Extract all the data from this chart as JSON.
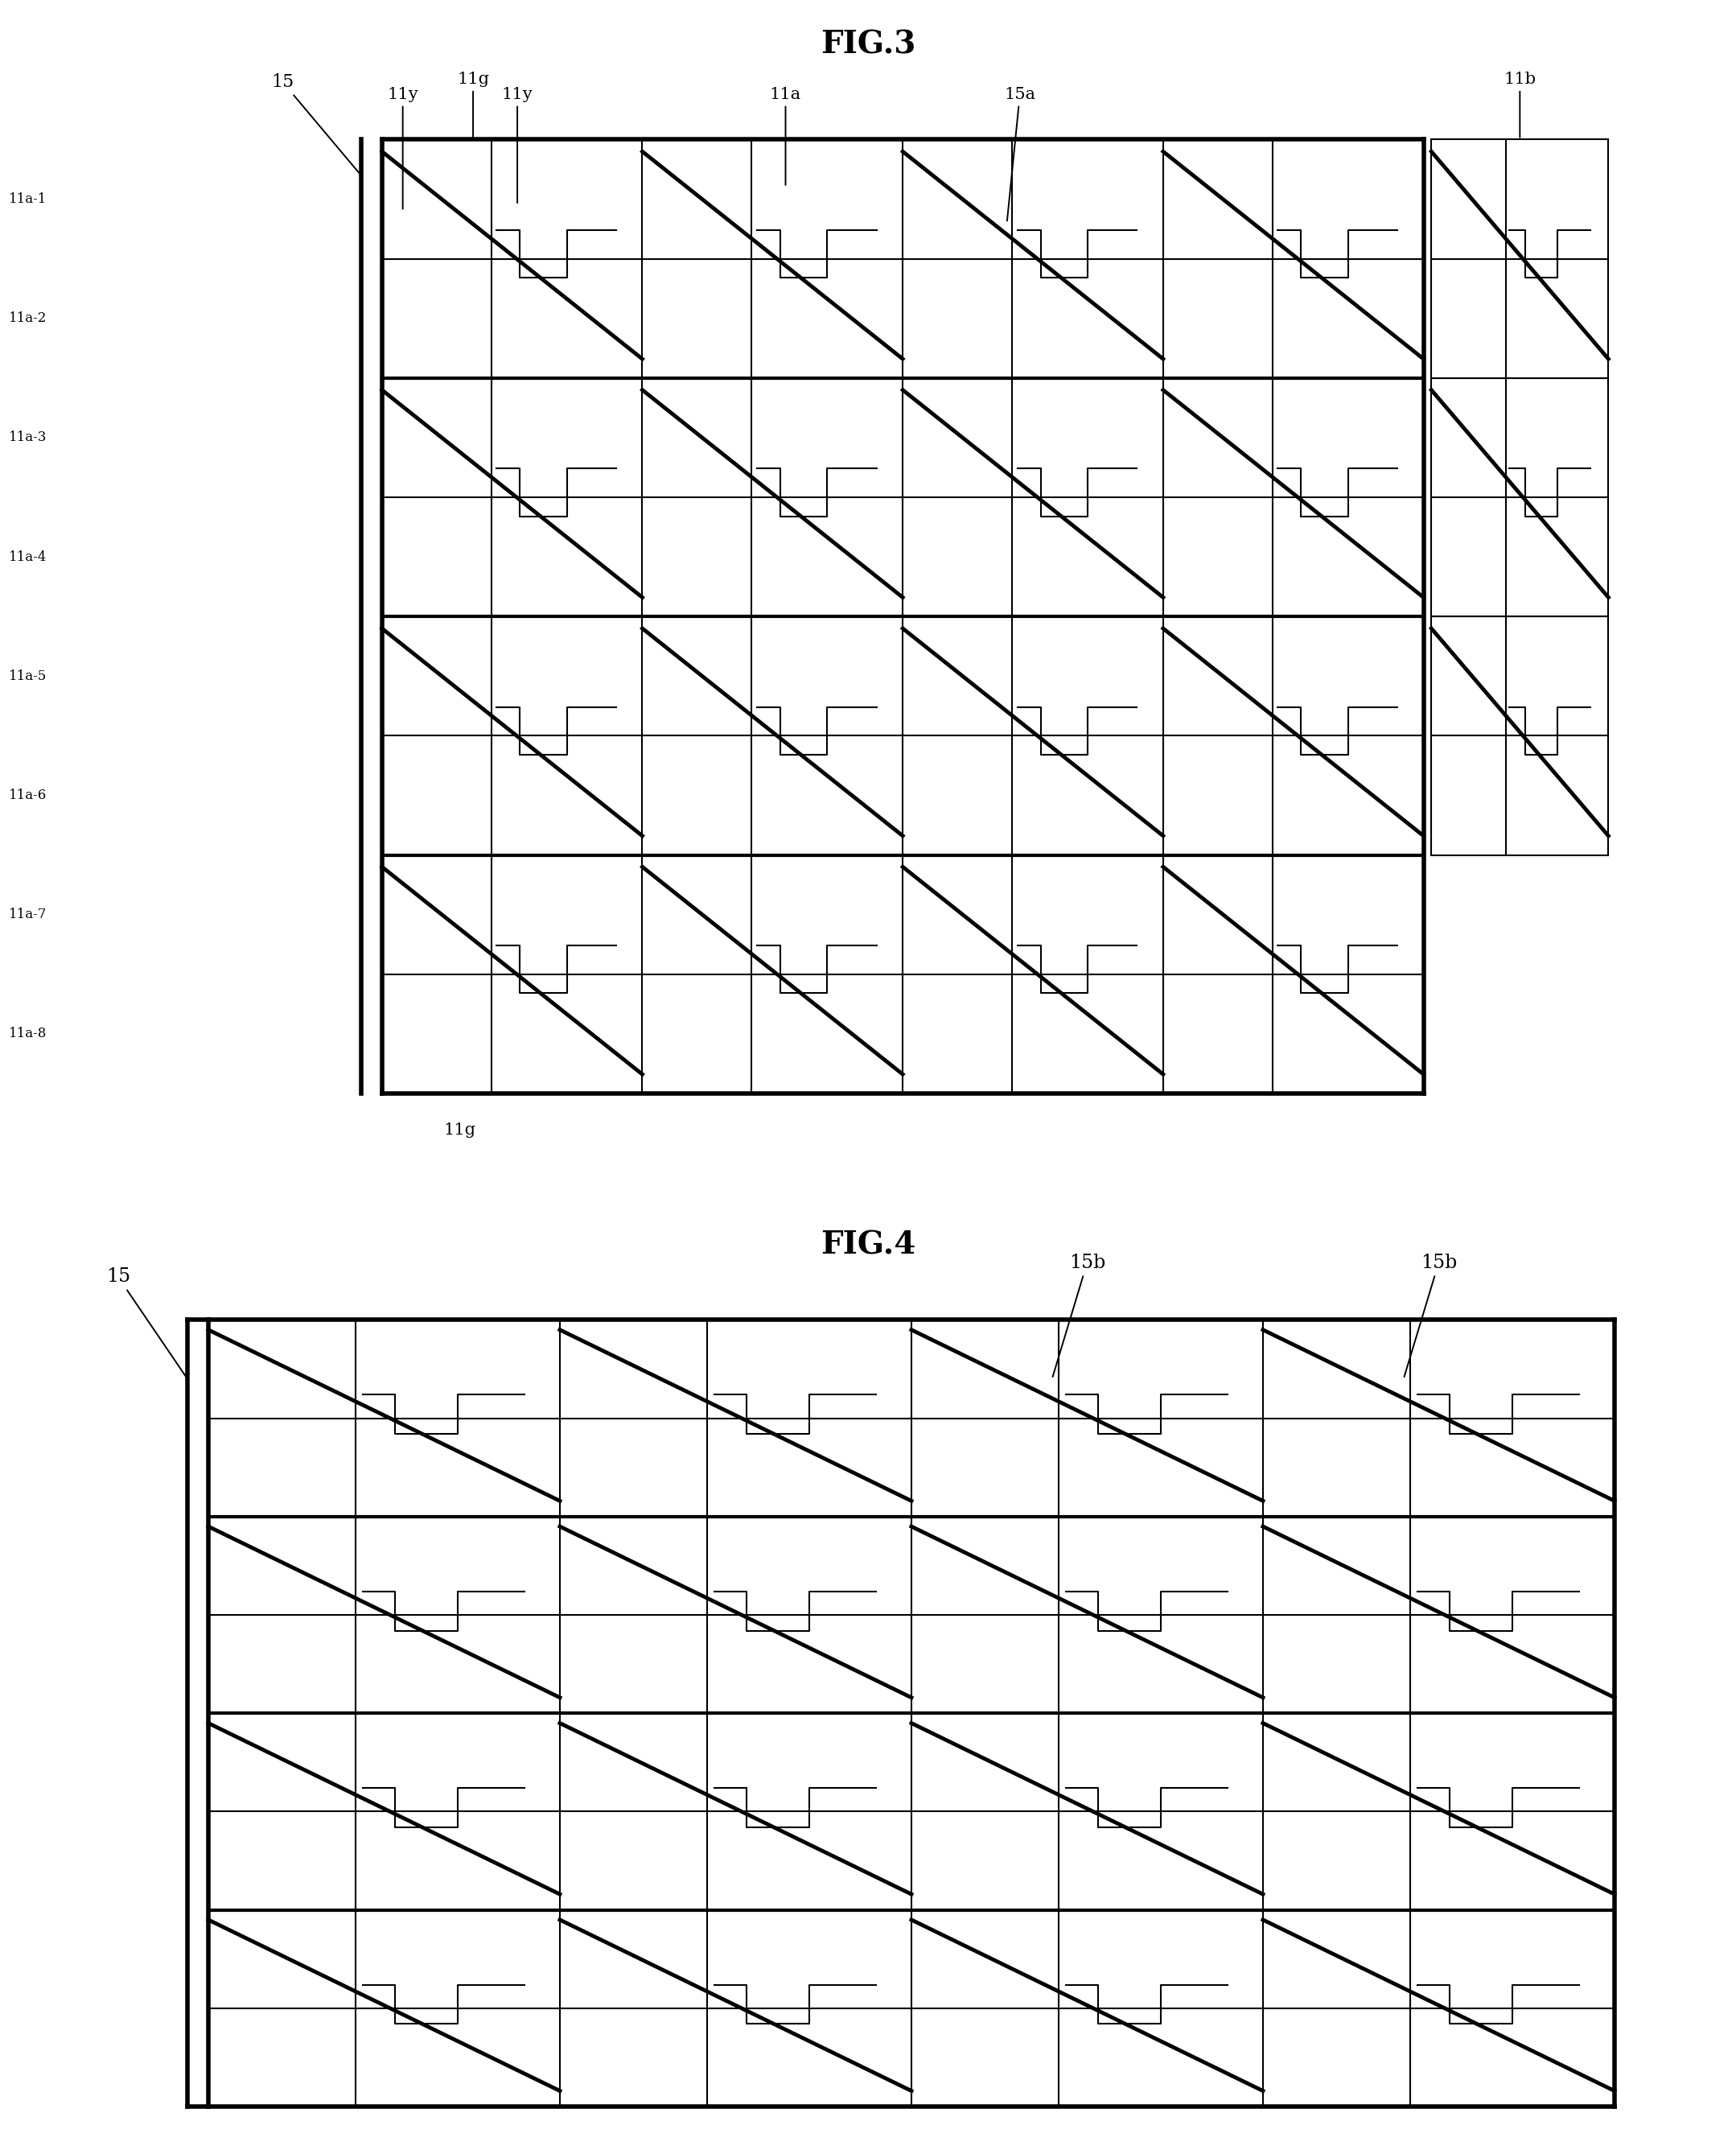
{
  "fig3_title": "FIG.3",
  "fig4_title": "FIG.4",
  "bg": "#ffffff",
  "lc": "#000000",
  "row_labels": [
    "11a-1",
    "11a-2",
    "11a-3",
    "11a-4",
    "11a-5",
    "11a-6",
    "11a-7",
    "11a-8"
  ],
  "fig3_ncols": 4,
  "fig3_nrows": 8,
  "fig4_ncols": 4,
  "fig4_nrows": 4,
  "lw_thin": 1.5,
  "lw_thick": 3.0,
  "lw_border": 4.0,
  "lw_diag": 3.5
}
